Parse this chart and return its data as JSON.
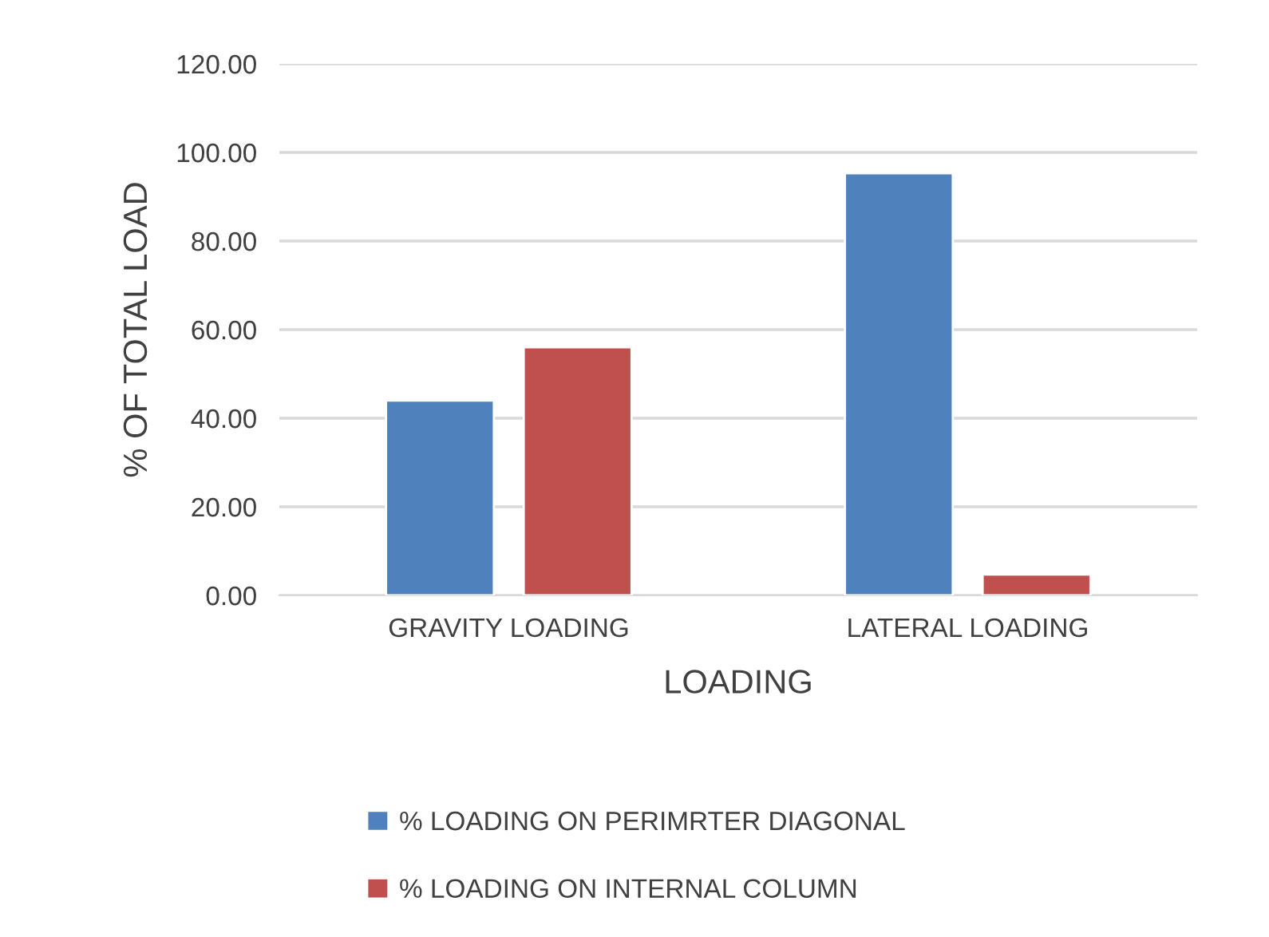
{
  "chart_data": {
    "type": "bar",
    "xlabel": "LOADING",
    "ylabel": "% OF TOTAL LOAD",
    "categories": [
      "GRAVITY LOADING",
      "LATERAL LOADING"
    ],
    "series": [
      {
        "name": "% LOADING ON PERIMRTER DIAGONAL",
        "color": "#4f81bd",
        "values": [
          44.0,
          95.3
        ]
      },
      {
        "name": "% LOADING ON INTERNAL COLUMN",
        "color": "#c0504d",
        "values": [
          56.0,
          4.7
        ]
      }
    ],
    "ylim": [
      0,
      120
    ],
    "yticks": [
      {
        "value": 0,
        "label": "0.00"
      },
      {
        "value": 20,
        "label": "20.00"
      },
      {
        "value": 40,
        "label": "40.00"
      },
      {
        "value": 60,
        "label": "60.00"
      },
      {
        "value": 80,
        "label": "80.00"
      },
      {
        "value": 100,
        "label": "100.00"
      },
      {
        "value": 120,
        "label": "120.00"
      }
    ],
    "grid": "y",
    "legend": "bottom"
  }
}
